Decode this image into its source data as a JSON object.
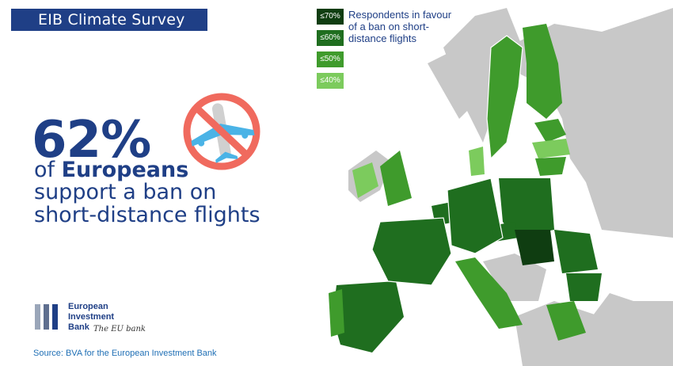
{
  "header": {
    "title": "EIB Climate Survey"
  },
  "headline": {
    "percent": "62%",
    "line1_prefix": "of ",
    "line1_bold": "Europeans",
    "line2": "support a ban on",
    "line3": "short-distance flights."
  },
  "legend": {
    "title": "Respondents in favour of a ban on short-distance flights",
    "items": [
      {
        "label": "≤70%",
        "color": "#0f3d11"
      },
      {
        "label": "≤60%",
        "color": "#1f6e1f"
      },
      {
        "label": "≤50%",
        "color": "#3f9b2c"
      },
      {
        "label": "≤40%",
        "color": "#7ccb5d"
      }
    ]
  },
  "colors": {
    "brand_blue": "#1f3f86",
    "non_eu_gray": "#c8c8c8",
    "sea_white": "#ffffff"
  },
  "logo": {
    "line1": "European",
    "line2": "Investment",
    "line3": "Bank",
    "tagline": "The EU bank"
  },
  "source": "Source: BVA for the European Investment Bank",
  "icon": "no-flights-icon"
}
